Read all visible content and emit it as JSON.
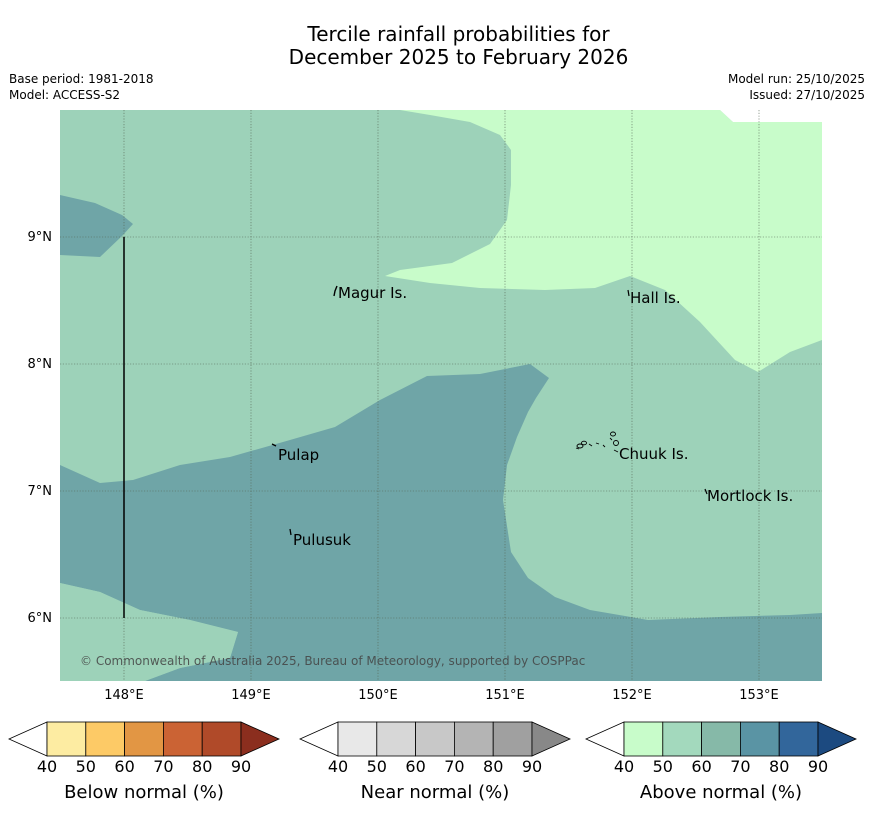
{
  "title": {
    "line1": "Tercile rainfall probabilities for",
    "line2": "December 2025 to February 2026"
  },
  "meta": {
    "base_period": "Base period: 1981-2018",
    "model": "Model: ACCESS-S2",
    "model_run": "Model run: 25/10/2025",
    "issued": "Issued: 27/10/2025"
  },
  "map": {
    "lon_range": [
      147.5,
      153.5
    ],
    "lat_range": [
      5.5,
      10.0
    ],
    "lon_ticks": [
      "148°E",
      "149°E",
      "150°E",
      "151°E",
      "152°E",
      "153°E"
    ],
    "lat_ticks": [
      "9°N",
      "8°N",
      "7°N",
      "6°N"
    ],
    "places": [
      {
        "name": "Magur Is."
      },
      {
        "name": "Hall Is."
      },
      {
        "name": "Pulap"
      },
      {
        "name": "Chuuk Is."
      },
      {
        "name": "Mortlock Is."
      },
      {
        "name": "Pulusuk"
      }
    ],
    "copyright": "© Commonwealth of Australia 2025, Bureau of Meteorology, supported by COSPPac",
    "colors": {
      "above_40_50": "#c8fcca",
      "above_50_60": "#9dd2b9",
      "above_60_70": "#6fa5a7",
      "grid": "#556655"
    }
  },
  "colorbars": [
    {
      "label": "Below normal (%)",
      "ticks": [
        "40",
        "50",
        "60",
        "70",
        "80",
        "90"
      ],
      "colors": [
        "#ffffff",
        "#fdeca2",
        "#fdca66",
        "#e29644",
        "#cb6334",
        "#b04a29",
        "#8b2e1e"
      ]
    },
    {
      "label": "Near normal (%)",
      "ticks": [
        "40",
        "50",
        "60",
        "70",
        "80",
        "90"
      ],
      "colors": [
        "#ffffff",
        "#e8e8e8",
        "#d7d7d7",
        "#c8c8c8",
        "#b4b4b4",
        "#a0a0a0",
        "#888888"
      ]
    },
    {
      "label": "Above normal (%)",
      "ticks": [
        "40",
        "50",
        "60",
        "70",
        "80",
        "90"
      ],
      "colors": [
        "#ffffff",
        "#c8fcca",
        "#a3d9bd",
        "#86b9a8",
        "#5a94a4",
        "#32669b",
        "#1c4a80"
      ]
    }
  ]
}
